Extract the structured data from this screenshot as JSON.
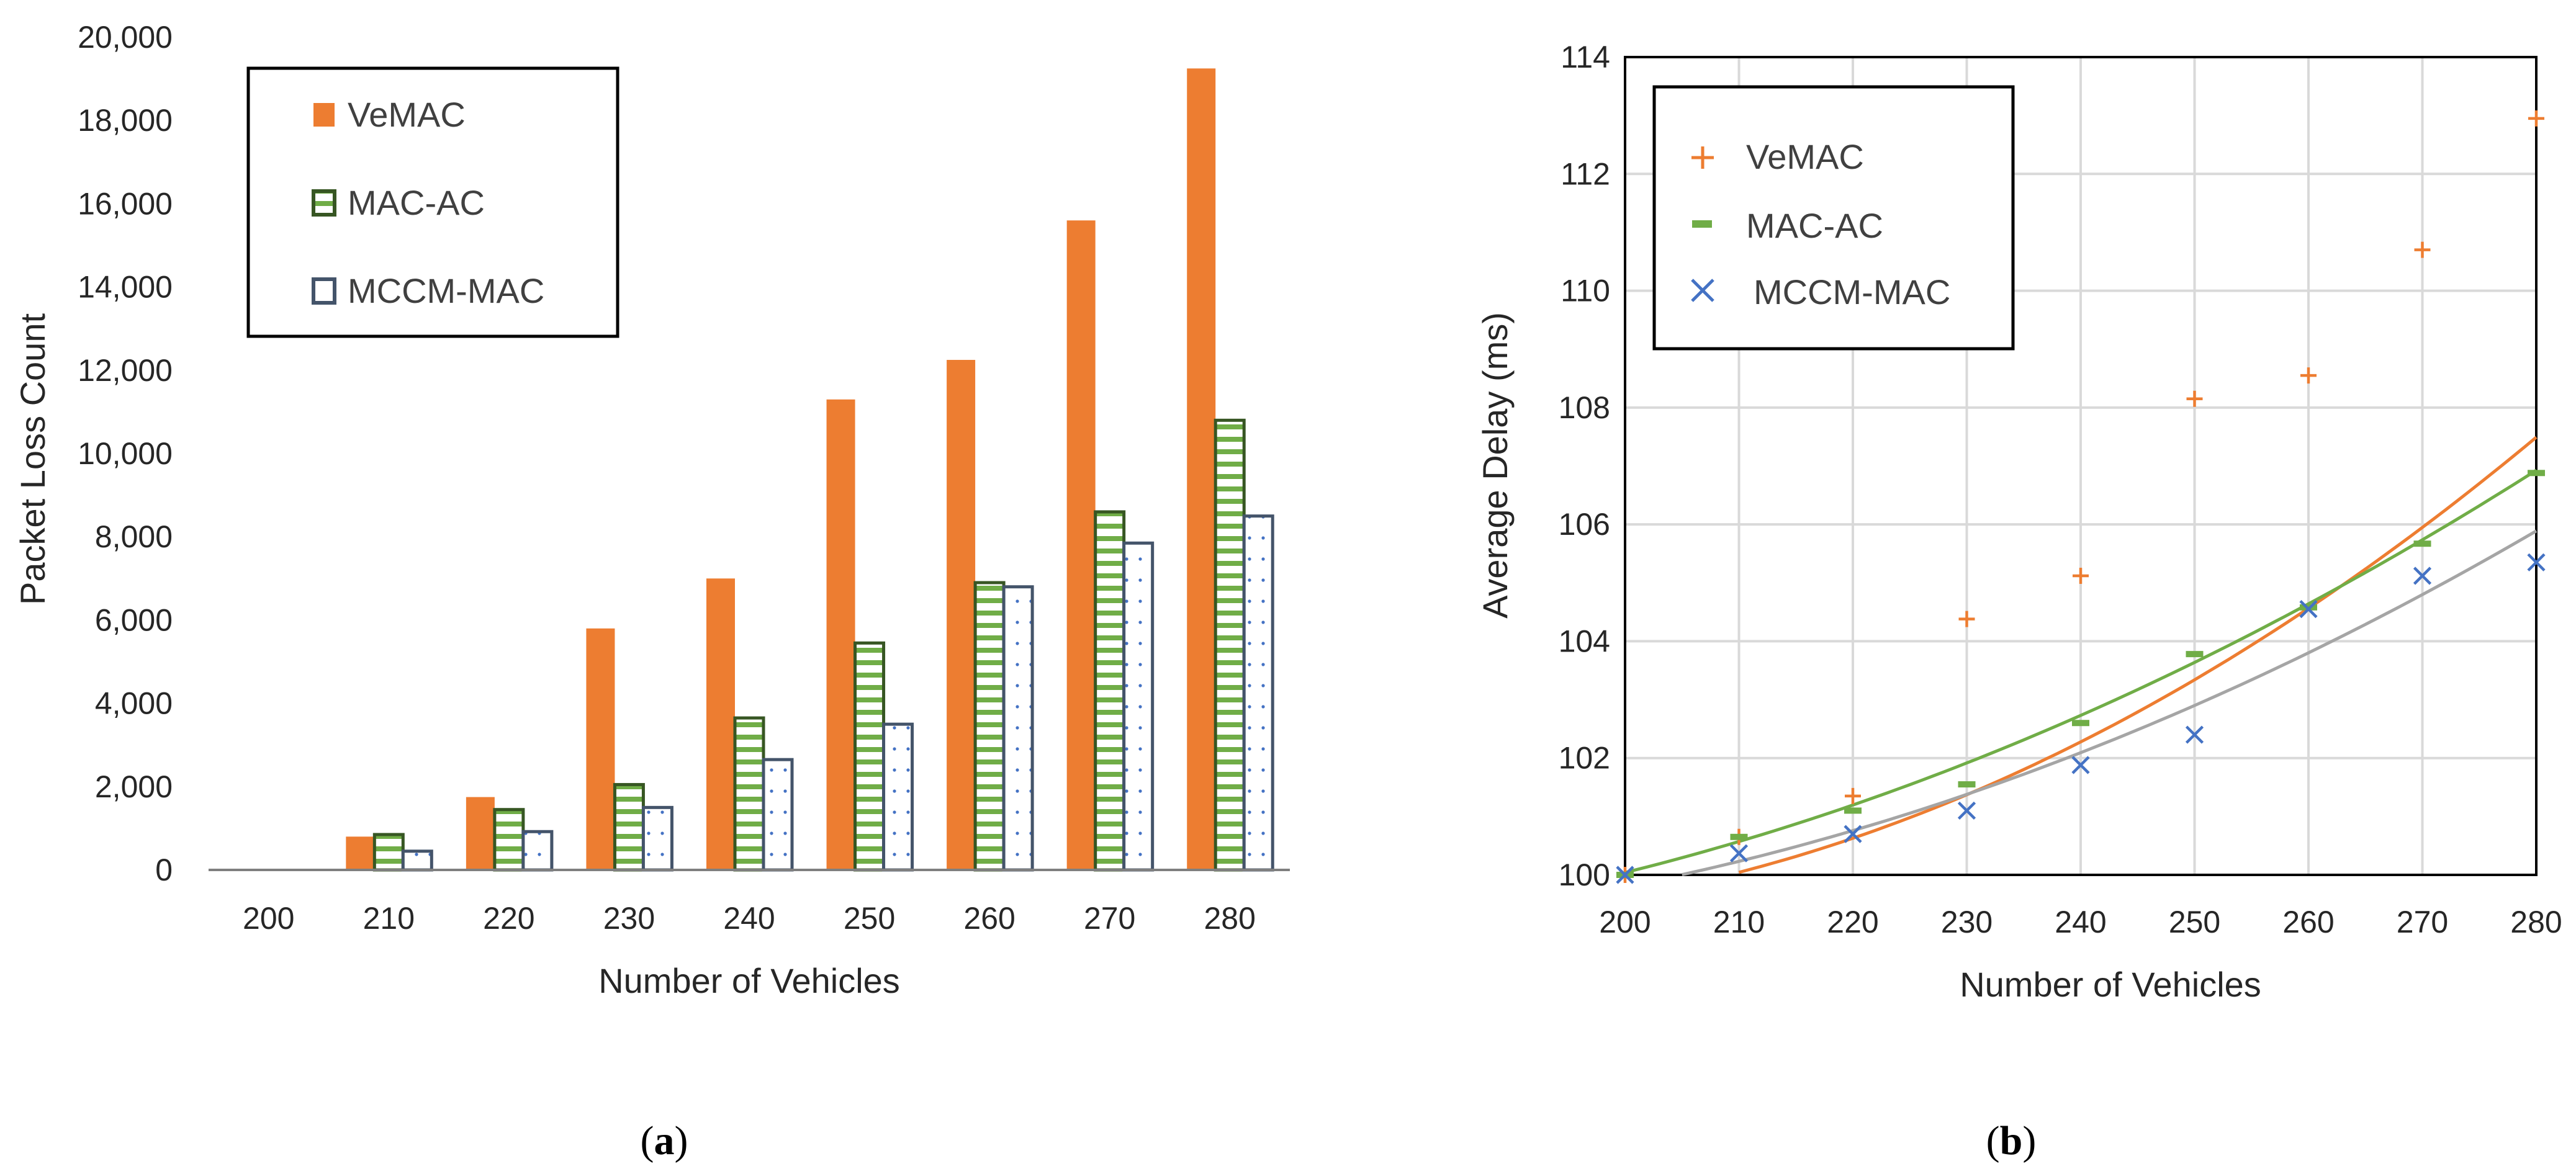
{
  "chart_data": [
    {
      "id": "a",
      "type": "bar",
      "caption_open": "(",
      "caption_letter": "a",
      "caption_close": ")",
      "categories": [
        "200",
        "210",
        "220",
        "230",
        "240",
        "250",
        "260",
        "270",
        "280"
      ],
      "series": [
        {
          "name": "VeMAC",
          "values": [
            0,
            800,
            1750,
            5800,
            7000,
            11300,
            12250,
            15600,
            19250
          ],
          "color": "#ED7D31"
        },
        {
          "name": "MAC-AC",
          "values": [
            0,
            850,
            1450,
            2050,
            3650,
            5450,
            6900,
            8600,
            10800
          ],
          "color": "#70AD47",
          "border": "#375623"
        },
        {
          "name": "MCCM-MAC",
          "values": [
            0,
            450,
            920,
            1500,
            2650,
            3500,
            6800,
            7850,
            8500
          ],
          "color": "#FFFFFF",
          "border": "#44546A",
          "dots": "#4472C4"
        }
      ],
      "ylim": [
        0,
        20000
      ],
      "yticks": [
        "0",
        "2,000",
        "4,000",
        "6,000",
        "8,000",
        "10,000",
        "12,000",
        "14,000",
        "16,000",
        "18,000",
        "20,000"
      ],
      "xlabel": "Number of Vehicles",
      "ylabel": "Packet Loss Count",
      "grid": false,
      "legend_position": "top-left"
    },
    {
      "id": "b",
      "type": "scatter",
      "caption_open": "(",
      "caption_letter": "b",
      "caption_close": ")",
      "x": [
        200,
        210,
        220,
        230,
        240,
        250,
        260,
        270,
        280
      ],
      "xticks": [
        "200",
        "210",
        "220",
        "230",
        "240",
        "250",
        "260",
        "270",
        "280"
      ],
      "xlim": [
        200,
        280
      ],
      "ylim": [
        100,
        114
      ],
      "yticks": [
        "100",
        "102",
        "104",
        "106",
        "108",
        "110",
        "112",
        "114"
      ],
      "series": [
        {
          "name": "VeMAC",
          "marker": "+",
          "values": [
            100,
            100.65,
            101.35,
            104.38,
            105.12,
            108.15,
            108.55,
            110.7,
            112.95
          ],
          "color": "#ED7D31",
          "trend_color": "#ED7D31",
          "trend": [
            99.62,
            0.0344,
            0.0008
          ]
        },
        {
          "name": "MAC-AC",
          "marker": "-",
          "values": [
            100,
            100.65,
            101.1,
            101.55,
            102.6,
            103.78,
            104.58,
            105.67,
            106.88
          ],
          "color": "#70AD47",
          "trend_color": "#70AD47",
          "trend": [
            100.04,
            0.0484,
            0.000471
          ]
        },
        {
          "name": "MCCM-MAC",
          "marker": "x",
          "values": [
            100,
            100.37,
            100.7,
            101.1,
            101.88,
            102.4,
            104.55,
            105.12,
            105.35
          ],
          "color": "#4472C4",
          "trend_color": "#A5A5A5",
          "trend": [
            99.8,
            0.0385,
            0.00047
          ]
        }
      ],
      "xlabel": "Number of Vehicles",
      "ylabel": "Average Delay (ms)",
      "grid": true,
      "legend_position": "top-left"
    }
  ]
}
